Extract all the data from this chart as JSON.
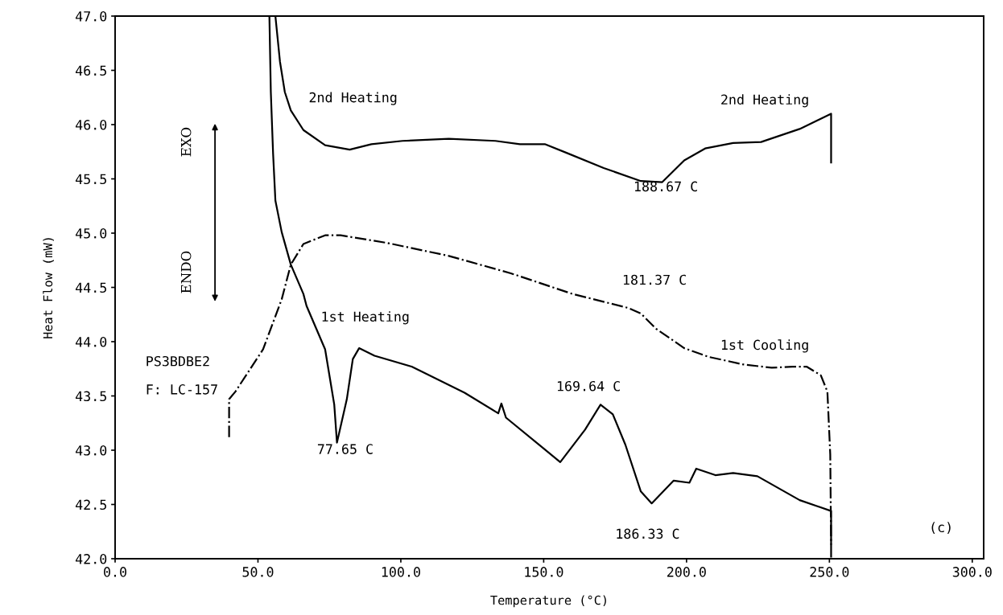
{
  "chart_data": {
    "type": "line",
    "xlabel": "Temperature (°C)",
    "ylabel": "Heat Flow (mW)",
    "xlim": [
      0,
      304
    ],
    "ylim": [
      42.0,
      47.0
    ],
    "xticks": [
      {
        "value": 0,
        "label": "0.0"
      },
      {
        "value": 50,
        "label": "50.0"
      },
      {
        "value": 100,
        "label": "100.0"
      },
      {
        "value": 150,
        "label": "150.0"
      },
      {
        "value": 200,
        "label": "200.0"
      },
      {
        "value": 250,
        "label": "250.0"
      },
      {
        "value": 300,
        "label": "300.0"
      }
    ],
    "yticks": [
      {
        "value": 42,
        "label": "42.0"
      },
      {
        "value": 42.5,
        "label": "42.5"
      },
      {
        "value": 43,
        "label": "43.0"
      },
      {
        "value": 43.5,
        "label": "43.5"
      },
      {
        "value": 44,
        "label": "44.0"
      },
      {
        "value": 44.5,
        "label": "44.5"
      },
      {
        "value": 45,
        "label": "45.0"
      },
      {
        "value": 45.5,
        "label": "45.5"
      },
      {
        "value": 46,
        "label": "46.0"
      },
      {
        "value": 46.5,
        "label": "46.5"
      },
      {
        "value": 47,
        "label": "47.0"
      }
    ],
    "grid": false,
    "marker": "none",
    "series": [
      {
        "color": "#000000",
        "line_style": "solid",
        "x": [
          54.0,
          54.5,
          55.3,
          56.1,
          58.3,
          61.5,
          65.9,
          67,
          73.5,
          76.7,
          77.65,
          81.1,
          83.2,
          85.4,
          90.8,
          103.8,
          122.3,
          134.1,
          135.2,
          136.8,
          149.3,
          155.8,
          164.5,
          169.9,
          174.2,
          178.6,
          184,
          187.8,
          195.5,
          201,
          203.4,
          210.1,
          216.3,
          224.8,
          239.6,
          250.6,
          250.6
        ],
        "values": [
          47.0,
          46.3,
          45.73,
          45.3,
          45.01,
          44.71,
          44.44,
          44.33,
          43.93,
          43.42,
          43.07,
          43.47,
          43.84,
          43.94,
          43.87,
          43.77,
          43.53,
          43.34,
          43.43,
          43.3,
          43.03,
          42.89,
          43.19,
          43.42,
          43.33,
          43.05,
          42.62,
          42.51,
          42.72,
          42.7,
          42.83,
          42.77,
          42.79,
          42.76,
          42.54,
          42.44,
          42.02
        ]
      },
      {
        "color": "#000000",
        "line_style": "dashdot",
        "x": [
          39.9,
          39.9,
          42.1,
          51.8,
          58.3,
          61.5,
          65.9,
          73.5,
          78.9,
          95.2,
          116.8,
          138.5,
          160.1,
          179.7,
          184,
          189.3,
          199.2,
          207.7,
          219.9,
          229.8,
          237.1,
          242,
          247,
          249.3,
          250.3,
          250.6
        ],
        "values": [
          43.12,
          43.47,
          43.54,
          43.93,
          44.39,
          44.71,
          44.9,
          44.98,
          44.98,
          44.91,
          44.79,
          44.63,
          44.44,
          44.31,
          44.26,
          44.12,
          43.94,
          43.86,
          43.79,
          43.76,
          43.77,
          43.77,
          43.69,
          43.54,
          42.96,
          42.13
        ]
      },
      {
        "color": "#000000",
        "line_style": "solid",
        "x": [
          56.1,
          57.7,
          59.4,
          61.5,
          65.9,
          73.5,
          82.1,
          89.7,
          100.6,
          116.8,
          133.1,
          141.7,
          150.4,
          158,
          171,
          184,
          191.5,
          199.2,
          206.5,
          216.3,
          226.1,
          239.6,
          250.6,
          250.6
        ],
        "values": [
          47.0,
          46.58,
          46.3,
          46.13,
          45.95,
          45.81,
          45.77,
          45.82,
          45.85,
          45.87,
          45.85,
          45.82,
          45.82,
          45.74,
          45.6,
          45.48,
          45.47,
          45.67,
          45.78,
          45.83,
          45.84,
          45.96,
          46.1,
          45.65
        ]
      }
    ],
    "annotations": [
      "2nd Heating",
      "2nd Heating",
      "1st Heating",
      "1st Cooling",
      "188.67 C",
      "181.37 C",
      "77.65 C",
      "169.64 C",
      "186.33 C",
      "PS3BDBE2",
      "F: LC-157",
      "(c)",
      "EXO",
      "ENDO"
    ]
  }
}
